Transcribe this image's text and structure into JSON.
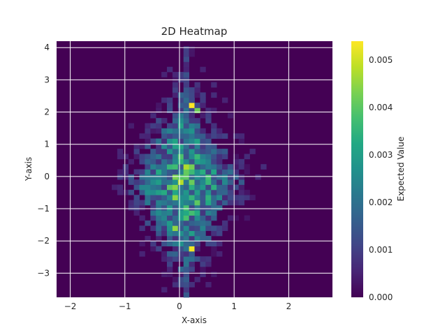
{
  "chart_data": {
    "type": "heatmap",
    "title": "2D Heatmap",
    "xlabel": "X-axis",
    "ylabel": "Y-axis",
    "xlim": [
      -2.25,
      2.8
    ],
    "ylim": [
      -3.75,
      4.2
    ],
    "xticks": [
      -2,
      -1,
      0,
      1,
      2
    ],
    "yticks": [
      -3,
      -2,
      -1,
      0,
      1,
      2,
      3,
      4
    ],
    "grid": true,
    "bins": [
      50,
      50
    ],
    "colormap": "viridis",
    "colorbar": {
      "label": "Expected Value",
      "range": [
        0,
        0.0054
      ],
      "ticks": [
        0.0,
        0.001,
        0.002,
        0.003,
        0.004,
        0.005
      ],
      "tick_labels": [
        "0.000",
        "0.001",
        "0.002",
        "0.003",
        "0.004",
        "0.005"
      ]
    },
    "density_model": {
      "description": "Roughly diamond-shaped blob centered near x≈0.1, y≈-0.5; peak values ~0.005 near (0.2, 2.2) and (0.2, -2.2); narrow vertical stem around x≈0.1 from y≈-3.7 to y≈4.1; many empty (0) cells around the periphery.",
      "peaks": [
        {
          "x": 0.2,
          "y": 2.25,
          "value": 0.0054
        },
        {
          "x": 0.2,
          "y": -2.2,
          "value": 0.0053
        },
        {
          "x": -0.1,
          "y": -1.55,
          "value": 0.0045
        },
        {
          "x": 0.3,
          "y": 2.1,
          "value": 0.0042
        }
      ]
    }
  }
}
